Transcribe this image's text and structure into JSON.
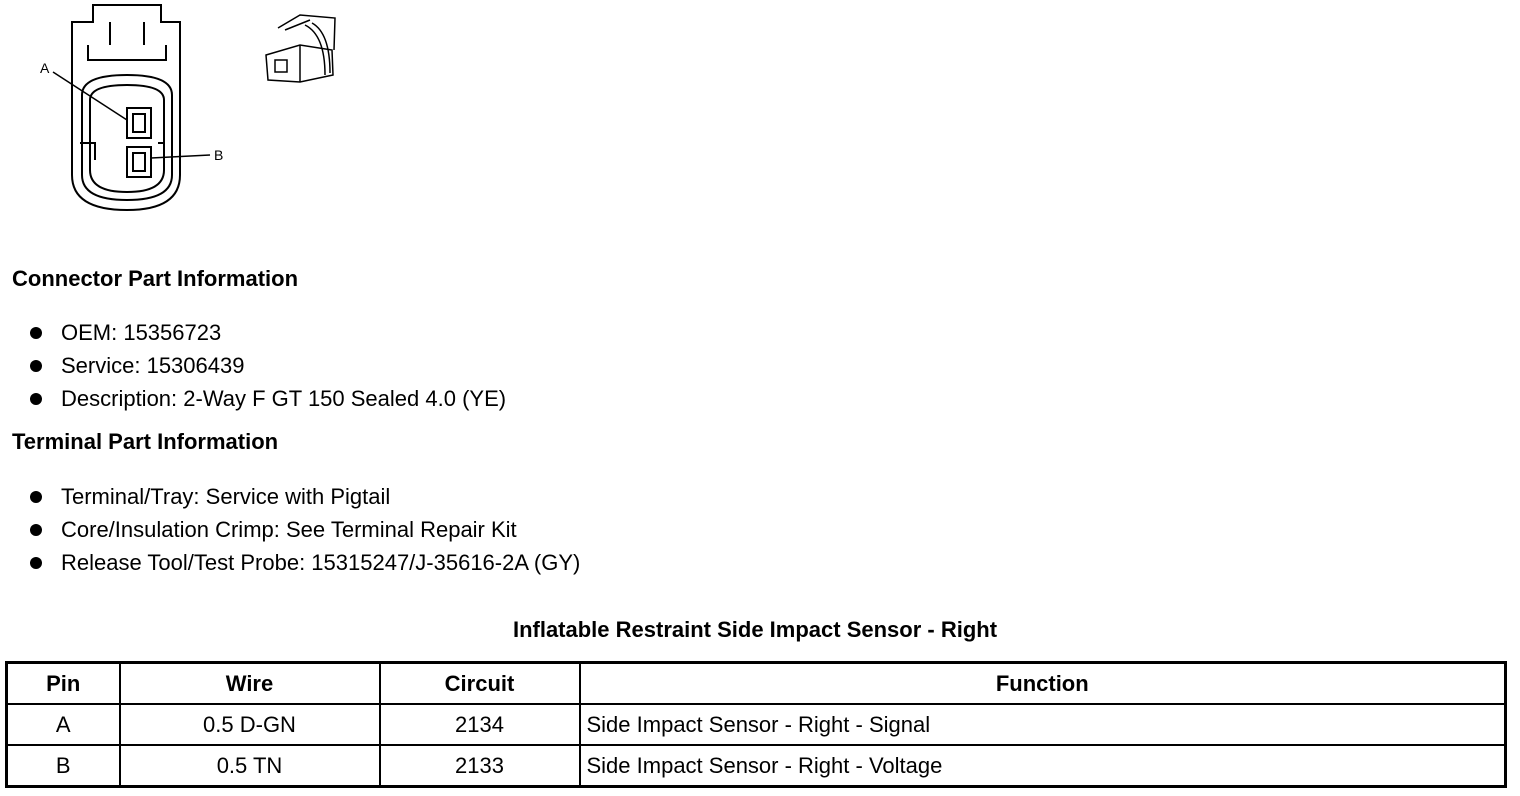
{
  "diagram": {
    "pin_labels": [
      "A",
      "B"
    ]
  },
  "connector_info": {
    "heading": "Connector Part Information",
    "items": [
      "OEM: 15356723",
      "Service: 15306439",
      "Description: 2-Way F GT 150 Sealed 4.0 (YE)"
    ]
  },
  "terminal_info": {
    "heading": "Terminal Part Information",
    "items": [
      "Terminal/Tray: Service with Pigtail",
      "Core/Insulation Crimp: See Terminal Repair Kit",
      "Release Tool/Test Probe: 15315247/J-35616-2A (GY)"
    ]
  },
  "table": {
    "caption": "Inflatable Restraint Side Impact Sensor - Right",
    "headers": [
      "Pin",
      "Wire",
      "Circuit",
      "Function"
    ],
    "rows": [
      [
        "A",
        "0.5 D-GN",
        "2134",
        "Side Impact Sensor - Right - Signal"
      ],
      [
        "B",
        "0.5 TN",
        "2133",
        "Side Impact Sensor - Right - Voltage"
      ]
    ]
  }
}
